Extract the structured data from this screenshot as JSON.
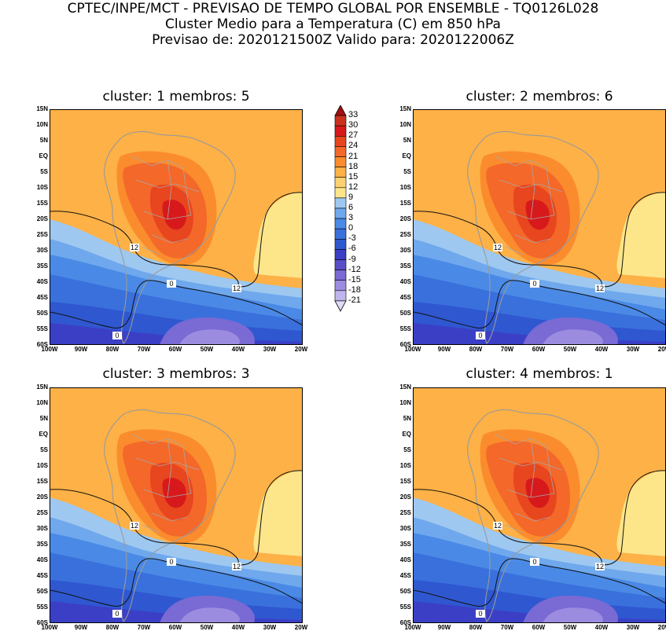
{
  "title": {
    "line1": "CPTEC/INPE/MCT - PREVISAO DE TEMPO GLOBAL POR ENSEMBLE - TQ0126L028",
    "line2": "Cluster Medio para a Temperatura (C) em 850 hPa",
    "line3": "Previsao de: 2020121500Z   Valido para: 2020122006Z"
  },
  "panels": [
    {
      "title": "cluster: 1  membros: 5"
    },
    {
      "title": "cluster: 2  membros: 6"
    },
    {
      "title": "cluster: 3  membros: 3"
    },
    {
      "title": "cluster: 4  membros: 1"
    }
  ],
  "lat_labels": [
    "15N",
    "10N",
    "5N",
    "EQ",
    "5S",
    "10S",
    "15S",
    "20S",
    "25S",
    "30S",
    "35S",
    "40S",
    "45S",
    "50S",
    "55S",
    "60S"
  ],
  "lon_labels": [
    "100W",
    "90W",
    "80W",
    "70W",
    "60W",
    "50W",
    "40W",
    "30W",
    "20W"
  ],
  "contour_labels": {
    "twelve": "12",
    "zero": "0"
  },
  "colorbar": {
    "labels": [
      "33",
      "30",
      "27",
      "24",
      "21",
      "18",
      "15",
      "12",
      "9",
      "6",
      "3",
      "0",
      "-3",
      "-6",
      "-9",
      "-12",
      "-15",
      "-18",
      "-21"
    ],
    "colors": [
      "#a50f0f",
      "#c8321e",
      "#d7191c",
      "#e8461e",
      "#f4682a",
      "#fb8c2d",
      "#fdb147",
      "#fdd070",
      "#fde58a",
      "#9ec8f0",
      "#6fa8ec",
      "#4a8ae6",
      "#3a70dc",
      "#2f57d0",
      "#3b3fc6",
      "#5a4ec8",
      "#7a6ad4",
      "#9c8ce0",
      "#c0b6ec",
      "#e0dcf6"
    ]
  }
}
